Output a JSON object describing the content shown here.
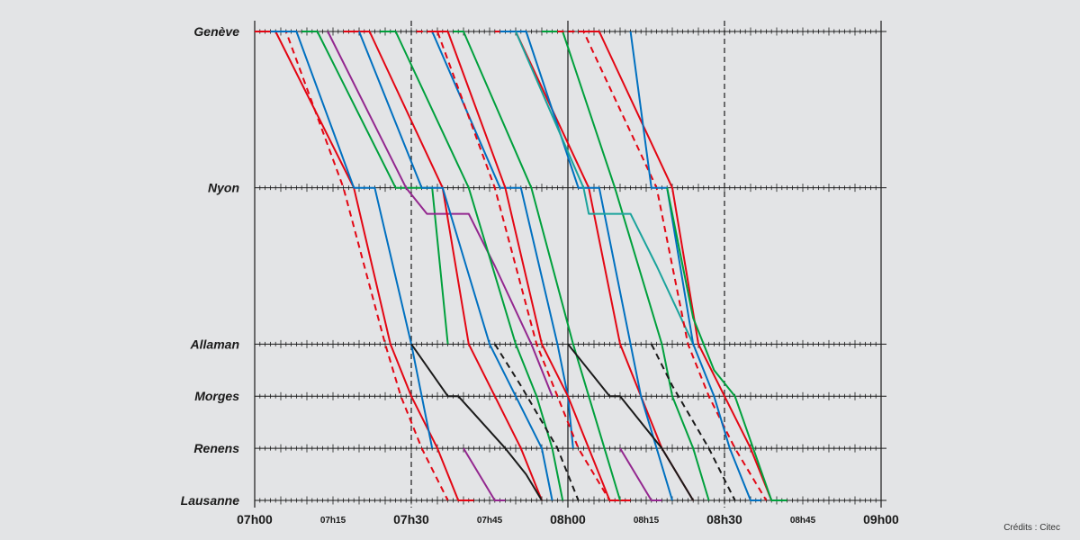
{
  "chart_data": {
    "type": "line",
    "chart_kind": "train graph (time-distance diagram)",
    "title": "",
    "xlabel": "",
    "ylabel": "",
    "x_unit": "minutes after 07h00",
    "xlim": [
      0,
      120
    ],
    "x_ticks": [
      {
        "value": 0,
        "label": "07h00",
        "major": true
      },
      {
        "value": 15,
        "label": "07h15",
        "major": false
      },
      {
        "value": 30,
        "label": "07h30",
        "major": true
      },
      {
        "value": 45,
        "label": "07h45",
        "major": false
      },
      {
        "value": 60,
        "label": "08h00",
        "major": true
      },
      {
        "value": 75,
        "label": "08h15",
        "major": false
      },
      {
        "value": 90,
        "label": "08h30",
        "major": true
      },
      {
        "value": 105,
        "label": "08h45",
        "major": false
      },
      {
        "value": 120,
        "label": "09h00",
        "major": true
      }
    ],
    "stations": [
      {
        "name": "Genève",
        "km": 0
      },
      {
        "name": "Nyon",
        "km": 30
      },
      {
        "name": "Allaman",
        "km": 60
      },
      {
        "name": "Morges",
        "km": 70
      },
      {
        "name": "Renens",
        "km": 80
      },
      {
        "name": "Lausanne",
        "km": 90
      }
    ],
    "grid": {
      "vertical_solid_every_min": 60,
      "vertical_dashed_every_min": 30,
      "minute_ticks": true
    },
    "series": [
      {
        "color": "#e30613",
        "style": "solid",
        "points": [
          [
            0,
            0
          ],
          [
            4,
            0
          ],
          [
            19,
            30
          ],
          [
            26,
            60
          ],
          [
            30,
            70
          ],
          [
            35,
            80
          ],
          [
            39,
            90
          ],
          [
            42,
            90
          ]
        ]
      },
      {
        "color": "#e30613",
        "style": "dashed",
        "points": [
          [
            1,
            0
          ],
          [
            6,
            0
          ],
          [
            17,
            30
          ],
          [
            25,
            60
          ],
          [
            28,
            70
          ],
          [
            32,
            80
          ],
          [
            37,
            90
          ]
        ]
      },
      {
        "color": "#0070c0",
        "style": "solid",
        "points": [
          [
            3,
            0
          ],
          [
            8,
            0
          ],
          [
            19,
            30
          ],
          [
            23,
            30
          ],
          [
            30,
            60
          ],
          [
            32,
            70
          ],
          [
            34,
            80
          ]
        ]
      },
      {
        "color": "#00a03c",
        "style": "solid",
        "points": [
          [
            9,
            0
          ],
          [
            12,
            0
          ],
          [
            27,
            30
          ],
          [
            34,
            30
          ],
          [
            37,
            60
          ]
        ]
      },
      {
        "color": "#93278f",
        "style": "solid",
        "points": [
          [
            14,
            0
          ],
          [
            29,
            30
          ],
          [
            33,
            35
          ],
          [
            41,
            35
          ],
          [
            46,
            45
          ],
          [
            53,
            60
          ],
          [
            57,
            70
          ]
        ]
      },
      {
        "color": "#e30613",
        "style": "solid",
        "points": [
          [
            17,
            0
          ],
          [
            22,
            0
          ],
          [
            36,
            30
          ],
          [
            41,
            60
          ],
          [
            46,
            70
          ],
          [
            51,
            80
          ],
          [
            55,
            90
          ]
        ]
      },
      {
        "color": "#0070c0",
        "style": "solid",
        "points": [
          [
            20,
            0
          ],
          [
            32,
            30
          ],
          [
            36,
            30
          ],
          [
            45,
            60
          ],
          [
            50,
            70
          ],
          [
            55,
            80
          ],
          [
            57,
            90
          ]
        ]
      },
      {
        "color": "#00a03c",
        "style": "solid",
        "points": [
          [
            24,
            0
          ],
          [
            27,
            0
          ],
          [
            41,
            30
          ],
          [
            50,
            60
          ],
          [
            54,
            70
          ],
          [
            57,
            80
          ],
          [
            59,
            90
          ]
        ]
      },
      {
        "color": "#0070c0",
        "style": "solid",
        "points": [
          [
            34,
            0
          ],
          [
            47,
            30
          ],
          [
            51,
            30
          ],
          [
            58,
            60
          ],
          [
            60,
            70
          ],
          [
            61,
            80
          ]
        ]
      },
      {
        "color": "#e30613",
        "style": "dashed",
        "points": [
          [
            31,
            0
          ],
          [
            35,
            0
          ],
          [
            46,
            30
          ],
          [
            54,
            60
          ],
          [
            58,
            70
          ],
          [
            62,
            80
          ],
          [
            68,
            90
          ]
        ]
      },
      {
        "color": "#e30613",
        "style": "solid",
        "points": [
          [
            33,
            0
          ],
          [
            37,
            0
          ],
          [
            48,
            30
          ],
          [
            55,
            60
          ],
          [
            60,
            70
          ],
          [
            64,
            80
          ],
          [
            68,
            90
          ],
          [
            72,
            90
          ]
        ]
      },
      {
        "color": "#00a03c",
        "style": "solid",
        "points": [
          [
            38,
            0
          ],
          [
            40,
            0
          ],
          [
            53,
            30
          ],
          [
            61,
            60
          ],
          [
            64,
            70
          ],
          [
            67,
            80
          ],
          [
            70,
            90
          ]
        ]
      },
      {
        "color": "#e30613",
        "style": "solid",
        "points": [
          [
            46,
            0
          ],
          [
            50,
            0
          ],
          [
            64,
            30
          ],
          [
            70,
            60
          ],
          [
            74,
            70
          ],
          [
            78,
            80
          ],
          [
            84,
            90
          ]
        ]
      },
      {
        "color": "#0070c0",
        "style": "solid",
        "points": [
          [
            47,
            0
          ],
          [
            52,
            0
          ],
          [
            62,
            30
          ],
          [
            66,
            30
          ],
          [
            72,
            60
          ],
          [
            74,
            70
          ],
          [
            77,
            80
          ],
          [
            80,
            90
          ]
        ]
      },
      {
        "color": "#00a03c",
        "style": "solid",
        "points": [
          [
            55,
            0
          ],
          [
            59,
            0
          ],
          [
            69,
            30
          ],
          [
            78,
            60
          ],
          [
            80,
            70
          ],
          [
            84,
            80
          ],
          [
            87,
            90
          ]
        ]
      },
      {
        "color": "#1ba39c",
        "style": "solid",
        "points": [
          [
            50,
            0
          ],
          [
            63,
            30
          ],
          [
            64,
            35
          ],
          [
            72,
            35
          ],
          [
            77,
            45
          ],
          [
            84,
            60
          ]
        ]
      },
      {
        "color": "#e30613",
        "style": "dashed",
        "points": [
          [
            58,
            0
          ],
          [
            63,
            0
          ],
          [
            77,
            30
          ],
          [
            83,
            60
          ],
          [
            87,
            70
          ],
          [
            92,
            80
          ],
          [
            98,
            90
          ]
        ]
      },
      {
        "color": "#e30613",
        "style": "solid",
        "points": [
          [
            62,
            0
          ],
          [
            66,
            0
          ],
          [
            80,
            30
          ],
          [
            85,
            60
          ],
          [
            90,
            70
          ],
          [
            95,
            80
          ],
          [
            99,
            90
          ],
          [
            102,
            90
          ]
        ]
      },
      {
        "color": "#0070c0",
        "style": "solid",
        "points": [
          [
            72,
            0
          ],
          [
            76,
            30
          ],
          [
            79,
            30
          ],
          [
            84,
            60
          ],
          [
            88,
            70
          ],
          [
            91,
            80
          ],
          [
            95,
            90
          ],
          [
            97,
            90
          ]
        ]
      },
      {
        "color": "#00a03c",
        "style": "solid",
        "points": [
          [
            79,
            30
          ],
          [
            84,
            55
          ],
          [
            88,
            65
          ],
          [
            92,
            70
          ],
          [
            99,
            90
          ],
          [
            102,
            90
          ]
        ]
      },
      {
        "color": "#1a1a1a",
        "style": "solid",
        "points": [
          [
            30,
            60
          ],
          [
            37,
            70
          ],
          [
            39,
            70
          ],
          [
            48,
            80
          ],
          [
            52,
            85
          ],
          [
            55,
            90
          ]
        ]
      },
      {
        "color": "#1a1a1a",
        "style": "dashed",
        "points": [
          [
            46,
            60
          ],
          [
            51,
            68
          ],
          [
            58,
            80
          ],
          [
            62,
            90
          ]
        ]
      },
      {
        "color": "#1a1a1a",
        "style": "solid",
        "points": [
          [
            60,
            60
          ],
          [
            68,
            70
          ],
          [
            70,
            70
          ],
          [
            78,
            80
          ],
          [
            81,
            85
          ],
          [
            84,
            90
          ]
        ]
      },
      {
        "color": "#1a1a1a",
        "style": "dashed",
        "points": [
          [
            76,
            60
          ],
          [
            80,
            68
          ],
          [
            87,
            80
          ],
          [
            92,
            90
          ]
        ]
      },
      {
        "color": "#93278f",
        "style": "solid",
        "points": [
          [
            40,
            80
          ],
          [
            46,
            90
          ],
          [
            48,
            90
          ]
        ]
      },
      {
        "color": "#93278f",
        "style": "solid",
        "points": [
          [
            70,
            80
          ],
          [
            76,
            90
          ],
          [
            78,
            90
          ]
        ]
      }
    ]
  },
  "credits": "Crédits : Citec"
}
